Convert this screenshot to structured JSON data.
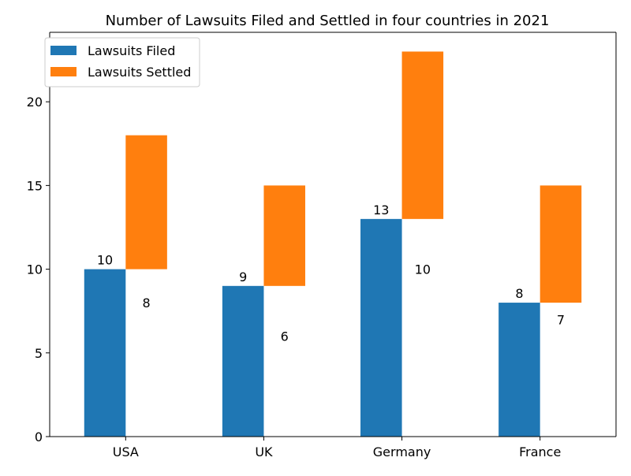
{
  "chart_data": {
    "type": "bar",
    "title": "Number of Lawsuits Filed and Settled in four countries in 2021",
    "xlabel": "",
    "ylabel": "",
    "categories": [
      "USA",
      "UK",
      "Germany",
      "France"
    ],
    "series": [
      {
        "name": "Lawsuits Filed",
        "values": [
          10,
          9,
          13,
          8
        ],
        "base": [
          0,
          0,
          0,
          0
        ],
        "color": "#1f77b4"
      },
      {
        "name": "Lawsuits Settled",
        "values": [
          8,
          6,
          10,
          7
        ],
        "base": [
          10,
          9,
          13,
          8
        ],
        "color": "#ff7f0e"
      }
    ],
    "ylim": [
      0,
      24.15
    ],
    "yticks": [
      0,
      5,
      10,
      15,
      20
    ],
    "legend": "top-left",
    "grid": false
  }
}
